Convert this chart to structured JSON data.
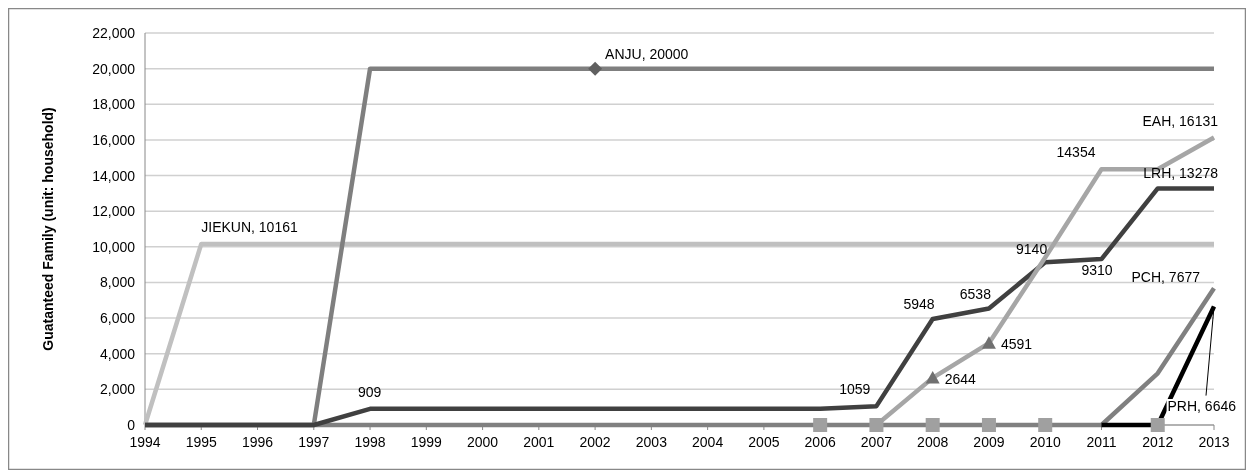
{
  "chart_data": {
    "type": "line",
    "ylabel": "Guatanteed Family (unit: household)",
    "xlim": [
      1994,
      2013
    ],
    "xticks": [
      1994,
      1995,
      1996,
      1997,
      1998,
      1999,
      2000,
      2001,
      2002,
      2003,
      2004,
      2005,
      2006,
      2007,
      2008,
      2009,
      2010,
      2011,
      2012,
      2013
    ],
    "ylim": [
      0,
      22000
    ],
    "yticks": [
      {
        "value": 0,
        "label": "0"
      },
      {
        "value": 2000,
        "label": "2,000"
      },
      {
        "value": 4000,
        "label": "4,000"
      },
      {
        "value": 6000,
        "label": "6,000"
      },
      {
        "value": 8000,
        "label": "8,000"
      },
      {
        "value": 10000,
        "label": "10,000"
      },
      {
        "value": 12000,
        "label": "12,000"
      },
      {
        "value": 14000,
        "label": "14,000"
      },
      {
        "value": 16000,
        "label": "16,000"
      },
      {
        "value": 18000,
        "label": "18,000"
      },
      {
        "value": 20000,
        "label": "20,000"
      },
      {
        "value": 22000,
        "label": "22,000"
      }
    ],
    "grid": "y",
    "marker": "none",
    "line_style": "solid",
    "x": [
      1994,
      1995,
      1996,
      1997,
      1998,
      1999,
      2000,
      2001,
      2002,
      2003,
      2004,
      2005,
      2006,
      2007,
      2008,
      2009,
      2010,
      2011,
      2012,
      2013
    ],
    "series": [
      {
        "color": "#c0c0c0",
        "values": [
          0,
          10161,
          10161,
          10161,
          10161,
          10161,
          10161,
          10161,
          10161,
          10161,
          10161,
          10161,
          10161,
          10161,
          10161,
          10161,
          10161,
          10161,
          10161,
          10161
        ],
        "value_labels": [
          null,
          "JIEKUN, 10161",
          null,
          null,
          null,
          null,
          null,
          null,
          null,
          null,
          null,
          null,
          null,
          null,
          null,
          null,
          null,
          null,
          null,
          null
        ]
      },
      {
        "color": "#7f7f7f",
        "values": [
          0,
          0,
          0,
          0,
          20000,
          20000,
          20000,
          20000,
          20000,
          20000,
          20000,
          20000,
          20000,
          20000,
          20000,
          20000,
          20000,
          20000,
          20000,
          20000
        ],
        "value_labels": [
          null,
          null,
          null,
          null,
          null,
          null,
          null,
          null,
          "ANJU, 20000",
          null,
          null,
          null,
          null,
          null,
          null,
          null,
          null,
          null,
          null,
          null
        ]
      },
      {
        "color": "#808080",
        "values": [
          0,
          0,
          0,
          0,
          0,
          0,
          0,
          0,
          0,
          0,
          0,
          0,
          0,
          0,
          0,
          0,
          0,
          0,
          2900,
          7677
        ],
        "value_labels": [
          null,
          null,
          null,
          null,
          null,
          null,
          null,
          null,
          null,
          null,
          null,
          null,
          null,
          null,
          null,
          null,
          null,
          null,
          null,
          "PCH, 7677"
        ]
      },
      {
        "color": "#000000",
        "x": [
          2011,
          2012,
          2013
        ],
        "values": [
          0,
          0,
          6646
        ],
        "value_labels": [
          null,
          null,
          "PRH, 6646"
        ]
      },
      {
        "color": "#404040",
        "values": [
          0,
          0,
          0,
          0,
          909,
          909,
          909,
          909,
          909,
          909,
          909,
          909,
          909,
          1059,
          5948,
          6538,
          9140,
          9310,
          13278,
          13278
        ],
        "value_labels": [
          null,
          null,
          null,
          null,
          "909",
          null,
          null,
          null,
          null,
          null,
          null,
          null,
          null,
          "1059",
          "5948",
          "6538",
          "9140",
          "9310",
          null,
          "LRH, 13278"
        ]
      },
      {
        "color": "#a6a6a6",
        "x": [
          2007,
          2008,
          2009,
          2010,
          2011,
          2012,
          2013
        ],
        "values": [
          0,
          2644,
          4591,
          9400,
          14354,
          14354,
          16131
        ],
        "value_labels": [
          null,
          "2644",
          "4591",
          null,
          "14354",
          null,
          "EAH, 16131"
        ]
      },
      {
        "type": "scatter",
        "marker": "square",
        "color": "#a0a0a0",
        "x": [
          2006,
          2007,
          2008,
          2009,
          2010,
          2012
        ],
        "values": [
          0,
          0,
          0,
          0,
          0,
          0
        ]
      },
      {
        "type": "scatter",
        "marker": "triangle",
        "color": "#707070",
        "x": [
          2008,
          2009
        ],
        "values": [
          2644,
          4591
        ]
      },
      {
        "type": "scatter",
        "marker": "diamond",
        "color": "#606060",
        "x": [
          2002
        ],
        "values": [
          20000
        ]
      }
    ]
  }
}
